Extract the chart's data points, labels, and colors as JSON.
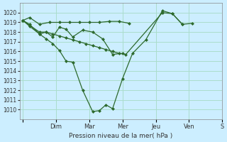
{
  "background_color": "#cceeff",
  "grid_color": "#aaddcc",
  "line_color": "#2d6a2d",
  "marker_color": "#2d6a2d",
  "ylabel": "Pression niveau de la mer( hPa )",
  "ylim": [
    1009,
    1021
  ],
  "yticks": [
    1010,
    1011,
    1012,
    1013,
    1014,
    1015,
    1016,
    1017,
    1018,
    1019,
    1020
  ],
  "x_labels": [
    "",
    "Dim",
    "Mar",
    "Mer",
    "Jeu",
    "Ven",
    "S"
  ],
  "x_ticks": [
    0,
    1,
    2,
    3,
    4,
    5,
    6
  ],
  "series": [
    [
      1019.2,
      1019.5,
      1018.8,
      1019.0,
      1019.0,
      1019.0,
      1019.0,
      1019.0,
      1019.0,
      1019.1,
      1019.1,
      1018.9
    ],
    [
      1019.2,
      1018.8,
      1017.8,
      1018.0,
      1017.5,
      1018.5,
      1018.3,
      1017.5,
      1018.2,
      1018.0,
      1017.3,
      1015.7,
      1015.8
    ],
    [
      1019.2,
      1018.6,
      1017.8,
      1017.3,
      1016.8,
      1016.1,
      1015.0,
      1014.9,
      1012.0,
      1009.8,
      1009.9,
      1010.5,
      1010.1,
      1013.2,
      1015.8,
      1017.2,
      1020.2,
      1019.9,
      1018.8,
      1018.9
    ],
    [
      1019.2,
      1018.7,
      1018.0,
      1018.0,
      1017.8,
      1017.6,
      1017.4,
      1017.2,
      1017.0,
      1016.8,
      1016.6,
      1016.4,
      1016.2,
      1016.0,
      1015.8,
      1015.7,
      1020.0,
      1019.9,
      1018.8
    ]
  ],
  "series_x": [
    [
      0,
      0.2,
      0.5,
      0.8,
      1.1,
      1.4,
      1.7,
      2.0,
      2.3,
      2.6,
      2.9,
      3.2
    ],
    [
      0,
      0.2,
      0.5,
      0.7,
      0.9,
      1.1,
      1.3,
      1.5,
      1.8,
      2.1,
      2.4,
      2.7,
      3.0
    ],
    [
      0,
      0.2,
      0.5,
      0.7,
      0.9,
      1.1,
      1.3,
      1.5,
      1.8,
      2.1,
      2.3,
      2.5,
      2.7,
      3.0,
      3.3,
      3.7,
      4.2,
      4.5,
      4.8,
      5.1
    ],
    [
      0,
      0.2,
      0.5,
      0.7,
      0.9,
      1.1,
      1.3,
      1.5,
      1.7,
      1.9,
      2.1,
      2.3,
      2.5,
      2.7,
      2.9,
      3.1,
      4.2,
      4.5,
      4.8
    ]
  ]
}
